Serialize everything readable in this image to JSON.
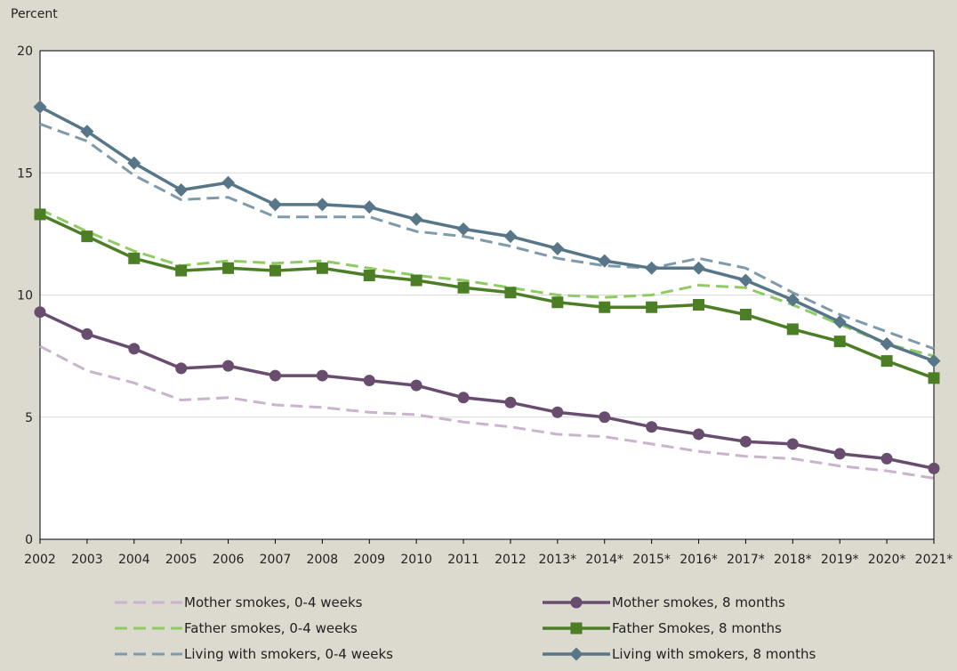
{
  "chart_data": {
    "type": "line",
    "ylabel": "Percent",
    "xlabel": "",
    "ylim": [
      0,
      20
    ],
    "yticks": [
      0,
      5,
      10,
      15,
      20
    ],
    "grid": "horizontal",
    "legend_position": "bottom",
    "categories": [
      "2002",
      "2003",
      "2004",
      "2005",
      "2006",
      "2007",
      "2008",
      "2009",
      "2010",
      "2011",
      "2012",
      "2013*",
      "2014*",
      "2015*",
      "2016*",
      "2017*",
      "2018*",
      "2019*",
      "2020*",
      "2021*"
    ],
    "series": [
      {
        "name": "Mother smokes, 0-4 weeks",
        "color": "#c9b3cd",
        "style": "dashed",
        "marker": "none",
        "values": [
          7.9,
          6.9,
          6.4,
          5.7,
          5.8,
          5.5,
          5.4,
          5.2,
          5.1,
          4.8,
          4.6,
          4.3,
          4.2,
          3.9,
          3.6,
          3.4,
          3.3,
          3.0,
          2.8,
          2.5
        ]
      },
      {
        "name": "Mother smokes, 8 months",
        "color": "#684d6e",
        "style": "solid",
        "marker": "circle",
        "values": [
          9.3,
          8.4,
          7.8,
          7.0,
          7.1,
          6.7,
          6.7,
          6.5,
          6.3,
          5.8,
          5.6,
          5.2,
          5.0,
          4.6,
          4.3,
          4.0,
          3.9,
          3.5,
          3.3,
          2.9
        ]
      },
      {
        "name": "Father smokes, 0-4 weeks",
        "color": "#8ecb63",
        "style": "dashed",
        "marker": "none",
        "values": [
          13.5,
          12.6,
          11.8,
          11.2,
          11.4,
          11.3,
          11.4,
          11.1,
          10.8,
          10.6,
          10.3,
          10.0,
          9.9,
          10.0,
          10.4,
          10.3,
          9.6,
          8.8,
          8.0,
          7.5
        ]
      },
      {
        "name": "Father Smokes, 8 months",
        "color": "#4c7e25",
        "style": "solid",
        "marker": "square",
        "values": [
          13.3,
          12.4,
          11.5,
          11.0,
          11.1,
          11.0,
          11.1,
          10.8,
          10.6,
          10.3,
          10.1,
          9.7,
          9.5,
          9.5,
          9.6,
          9.2,
          8.6,
          8.1,
          7.3,
          6.6
        ]
      },
      {
        "name": "Living with smokers, 0-4 weeks",
        "color": "#7f9aaa",
        "style": "dashed",
        "marker": "none",
        "values": [
          17.0,
          16.3,
          14.9,
          13.9,
          14.0,
          13.2,
          13.2,
          13.2,
          12.6,
          12.4,
          12.0,
          11.5,
          11.2,
          11.1,
          11.5,
          11.1,
          10.1,
          9.2,
          8.5,
          7.8
        ]
      },
      {
        "name": "Living with smokers, 8 months",
        "color": "#577788",
        "style": "solid",
        "marker": "diamond",
        "values": [
          17.7,
          16.7,
          15.4,
          14.3,
          14.6,
          13.7,
          13.7,
          13.6,
          13.1,
          12.7,
          12.4,
          11.9,
          11.4,
          11.1,
          11.1,
          10.6,
          9.8,
          8.9,
          8.0,
          7.3
        ]
      }
    ]
  }
}
